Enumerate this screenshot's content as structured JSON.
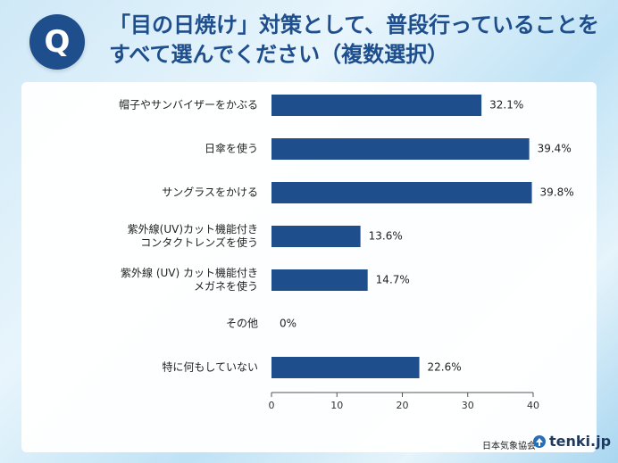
{
  "header": {
    "badge": "Q",
    "title_line1": "「目の日焼け」対策として、普段行っていることを",
    "title_line2": "すべて選んでください（複数選択）"
  },
  "footer": {
    "org": "日本気象協会",
    "brand": "tenki.jp"
  },
  "colors": {
    "bar": "#1f4e8c",
    "title": "#1f4e8c"
  },
  "chart_data": {
    "type": "bar",
    "orientation": "horizontal",
    "categories": [
      [
        "帽子やサンバイザーをかぶる"
      ],
      [
        "日傘を使う"
      ],
      [
        "サングラスをかける"
      ],
      [
        "紫外線(UV)カット機能付き",
        "コンタクトレンズを使う"
      ],
      [
        "紫外線 (UV) カット機能付き",
        "メガネを使う"
      ],
      [
        "その他"
      ],
      [
        "特に何もしていない"
      ]
    ],
    "values": [
      32.1,
      39.4,
      39.8,
      13.6,
      14.7,
      0,
      22.6
    ],
    "value_labels": [
      "32.1%",
      "39.4%",
      "39.8%",
      "13.6%",
      "14.7%",
      "0%",
      "22.6%"
    ],
    "xlim": [
      0,
      40
    ],
    "xticks": [
      0,
      10,
      20,
      30,
      40
    ],
    "grid": false
  }
}
